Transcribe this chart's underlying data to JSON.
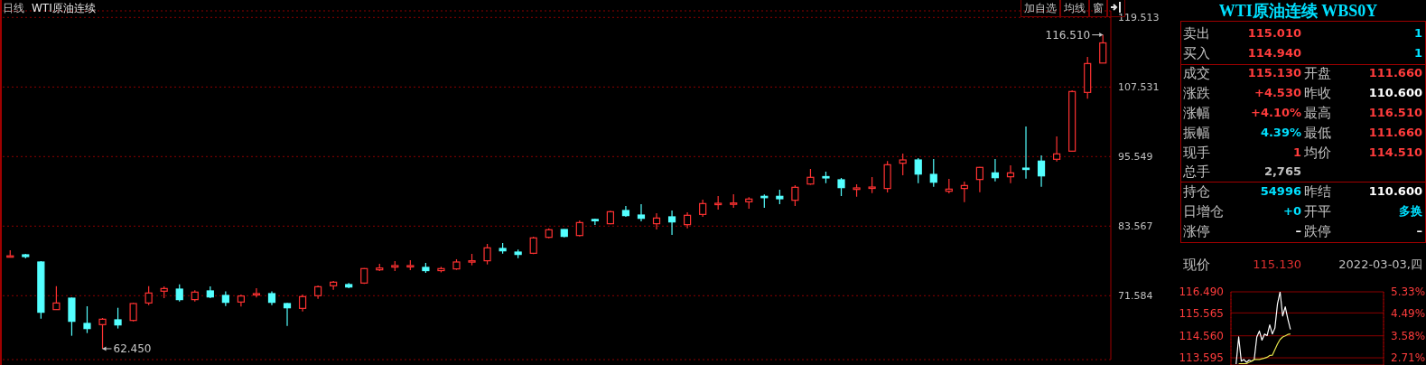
{
  "chart_data": [
    {
      "type": "candlestick",
      "title": "WTI原油连续",
      "annotations": [
        "日线",
        "加自选",
        "均线",
        "窗",
        "62.450",
        "116.510"
      ],
      "categories": [
        null,
        null,
        null,
        null,
        null,
        null,
        null,
        null,
        null,
        null,
        null,
        null,
        null,
        null,
        null,
        null,
        null,
        null,
        null,
        null,
        null,
        null,
        null,
        null,
        null,
        null,
        null,
        null,
        null,
        null,
        null,
        null,
        null,
        null,
        null,
        null,
        null,
        null,
        null,
        null,
        null,
        null,
        null,
        null,
        null,
        null,
        null,
        null,
        null,
        null,
        null,
        null,
        null,
        null,
        null,
        null,
        null,
        null,
        null,
        null,
        null,
        null,
        null,
        null,
        null,
        null,
        null,
        null,
        null,
        null,
        null,
        null
      ],
      "ohlc": [
        [
          78.4,
          79.41,
          78.17,
          78.45
        ],
        [
          78.63,
          78.79,
          78.01,
          78.32
        ],
        [
          77.39,
          77.54,
          67.64,
          68.73
        ],
        [
          69.19,
          73.24,
          69.15,
          70.33
        ],
        [
          71.16,
          71.27,
          64.68,
          67.17
        ],
        [
          66.81,
          69.76,
          65.15,
          65.92
        ],
        [
          66.6,
          67.74,
          62.45,
          67.53
        ],
        [
          67.43,
          69.5,
          65.93,
          66.55
        ],
        [
          67.32,
          70.33,
          67.17,
          70.23
        ],
        [
          70.33,
          73.24,
          69.97,
          72.05
        ],
        [
          72.36,
          73.19,
          71.16,
          72.82
        ],
        [
          72.72,
          73.55,
          70.59,
          70.91
        ],
        [
          70.91,
          72.52,
          70.59,
          72.2
        ],
        [
          72.41,
          73.19,
          71.16,
          71.37
        ],
        [
          71.63,
          72.31,
          69.81,
          70.44
        ],
        [
          70.49,
          71.79,
          69.71,
          71.53
        ],
        [
          71.79,
          72.88,
          71.27,
          71.94
        ],
        [
          71.94,
          72.31,
          69.97,
          70.44
        ],
        [
          70.23,
          70.33,
          66.39,
          69.5
        ],
        [
          69.4,
          71.79,
          68.88,
          71.43
        ],
        [
          71.58,
          73.34,
          71.06,
          73.13
        ],
        [
          73.29,
          74.12,
          72.62,
          73.91
        ],
        [
          73.5,
          73.76,
          72.88,
          73.08
        ],
        [
          73.76,
          76.35,
          73.6,
          76.25
        ],
        [
          76.04,
          77.08,
          75.83,
          76.35
        ],
        [
          76.51,
          77.54,
          75.83,
          76.77
        ],
        [
          76.66,
          77.7,
          75.99,
          76.77
        ],
        [
          76.46,
          77.23,
          75.52,
          75.9
        ],
        [
          75.9,
          76.56,
          75.6,
          76.25
        ],
        [
          76.2,
          77.86,
          76.04,
          77.39
        ],
        [
          77.5,
          78.79,
          76.82,
          77.6
        ],
        [
          77.6,
          80.5,
          76.97,
          79.83
        ],
        [
          79.72,
          80.66,
          78.84,
          79.31
        ],
        [
          79.1,
          79.52,
          78.06,
          78.69
        ],
        [
          78.89,
          81.75,
          78.74,
          81.54
        ],
        [
          81.64,
          83.2,
          81.49,
          82.94
        ],
        [
          82.99,
          83.04,
          81.64,
          81.8
        ],
        [
          81.95,
          84.55,
          81.8,
          84.18
        ],
        [
          84.72,
          84.86,
          83.77,
          84.68
        ],
        [
          83.98,
          86.21,
          83.9,
          86.05
        ],
        [
          86.26,
          87.04,
          85.17,
          85.38
        ],
        [
          85.48,
          87.35,
          84.39,
          84.91
        ],
        [
          83.98,
          85.79,
          82.99,
          84.96
        ],
        [
          85.17,
          86.26,
          82.06,
          84.29
        ],
        [
          83.82,
          85.95,
          83.2,
          85.43
        ],
        [
          85.58,
          88.13,
          85.17,
          87.45
        ],
        [
          87.4,
          88.75,
          86.41,
          87.5
        ],
        [
          87.45,
          89.06,
          86.73,
          87.55
        ],
        [
          87.76,
          88.54,
          86.57,
          88.23
        ],
        [
          88.7,
          89.01,
          86.73,
          88.65
        ],
        [
          88.7,
          89.84,
          87.35,
          88.28
        ],
        [
          88.02,
          90.62,
          87.04,
          90.25
        ],
        [
          90.82,
          93.42,
          90.7,
          91.97
        ],
        [
          92.1,
          92.95,
          90.98,
          92.05
        ],
        [
          91.55,
          91.86,
          88.75,
          90.2
        ],
        [
          89.89,
          90.77,
          88.64,
          90.15
        ],
        [
          90.2,
          92.02,
          89.27,
          90.3
        ],
        [
          90.05,
          94.77,
          89.37,
          94.14
        ],
        [
          94.4,
          96.06,
          92.33,
          94.97
        ],
        [
          94.97,
          95.28,
          90.98,
          92.53
        ],
        [
          92.48,
          95.13,
          90.36,
          91.13
        ],
        [
          89.58,
          91.71,
          89.22,
          89.94
        ],
        [
          90.05,
          91.24,
          87.71,
          90.56
        ],
        [
          91.6,
          93.75,
          89.42,
          93.68
        ],
        [
          92.74,
          95.13,
          91.29,
          91.91
        ],
        [
          92.07,
          94.04,
          90.98,
          92.74
        ],
        [
          93.56,
          100.73,
          91.76,
          93.5
        ],
        [
          94.77,
          95.75,
          90.36,
          92.22
        ],
        [
          95.08,
          99.02,
          94.71,
          96.01
        ],
        [
          96.48,
          106.95,
          96.4,
          106.75
        ],
        [
          106.59,
          112.71,
          105.5,
          111.57
        ],
        [
          111.66,
          116.51,
          111.66,
          115.13
        ]
      ],
      "ylim": [
        60.58,
        120.65
      ],
      "yticks": [
        71.584,
        83.567,
        95.549,
        107.531,
        119.513
      ],
      "grid": "y"
    },
    {
      "type": "other",
      "title": "WTI原油连续 WBS0Y",
      "annotations": [
        "卖出",
        "115.010",
        "1",
        "买入",
        "114.940",
        "1",
        "成交",
        "115.130",
        "开盘",
        "111.660",
        "涨跌",
        "+4.530",
        "昨收",
        "110.600",
        "涨幅",
        "+4.10%",
        "最高",
        "116.510",
        "振幅",
        "4.39%",
        "最低",
        "111.660",
        "现手",
        "1",
        "均价",
        "114.510",
        "总手",
        "2,765",
        "持仓",
        "54996",
        "昨结",
        "110.600",
        "日增仓",
        "+0",
        "开平",
        "多换",
        "涨停",
        "–",
        "跌停",
        "–",
        "现价",
        "115.130",
        "2022-03-03,四"
      ]
    },
    {
      "type": "line",
      "categories": [
        null,
        null,
        null,
        null,
        null,
        null,
        null,
        null,
        null,
        null,
        null,
        null,
        null,
        null,
        null,
        null,
        null,
        null,
        null,
        null,
        null,
        null,
        null,
        null,
        null,
        null,
        null,
        null,
        null,
        null,
        null,
        null,
        null,
        null,
        null,
        null,
        null,
        null,
        null,
        null,
        null,
        null,
        null,
        null,
        null,
        null,
        null,
        null,
        null,
        null,
        null,
        null,
        null,
        null,
        null,
        null,
        null,
        null,
        null,
        null
      ],
      "series": [
        {
          "color": "#ffffff",
          "values": [
            null,
            null,
            113.32,
            114.51,
            113.45,
            113.52,
            113.4,
            113.5,
            113.45,
            113.52,
            114.51,
            114.77,
            114.37,
            114.64,
            114.57,
            115.04,
            114.64,
            114.9,
            115.96,
            116.49,
            115.43,
            115.83,
            115.3,
            114.84,
            null,
            null,
            null,
            null,
            null,
            null,
            null,
            null,
            null,
            null,
            null,
            null,
            null,
            null,
            null,
            null,
            null,
            null,
            null,
            null,
            null,
            null,
            null,
            null,
            null,
            null,
            null,
            null,
            null,
            null,
            null,
            null,
            null,
            null,
            null,
            null
          ]
        },
        {
          "color": "#e6e64c",
          "values": [
            null,
            null,
            null,
            113.34,
            113.34,
            113.34,
            113.34,
            113.4,
            113.45,
            113.52,
            113.52,
            113.52,
            113.55,
            113.58,
            113.62,
            113.7,
            113.71,
            113.95,
            114.2,
            114.4,
            114.51,
            114.56,
            114.62,
            114.64,
            null,
            null,
            null,
            null,
            null,
            null,
            null,
            null,
            null,
            null,
            null,
            null,
            null,
            null,
            null,
            null,
            null,
            null,
            null,
            null,
            null,
            null,
            null,
            null,
            null,
            null,
            null,
            null,
            null,
            null,
            null,
            null,
            null,
            null,
            null,
            null
          ]
        }
      ],
      "ylim": [
        113.28,
        116.49
      ],
      "yticks": [
        113.595,
        {
          "value": 114.56,
          "label": "114.560"
        },
        115.565,
        {
          "value": 116.49,
          "label": "116.490"
        }
      ],
      "y2lim": [
        2.42,
        5.33
      ],
      "y2ticks": [
        {
          "value": 2.71,
          "label": "2.71%"
        },
        {
          "value": 3.58,
          "label": "3.58%"
        },
        {
          "value": 4.49,
          "label": "4.49%"
        },
        {
          "value": 5.33,
          "label": "5.33%"
        }
      ],
      "grid": true
    }
  ]
}
